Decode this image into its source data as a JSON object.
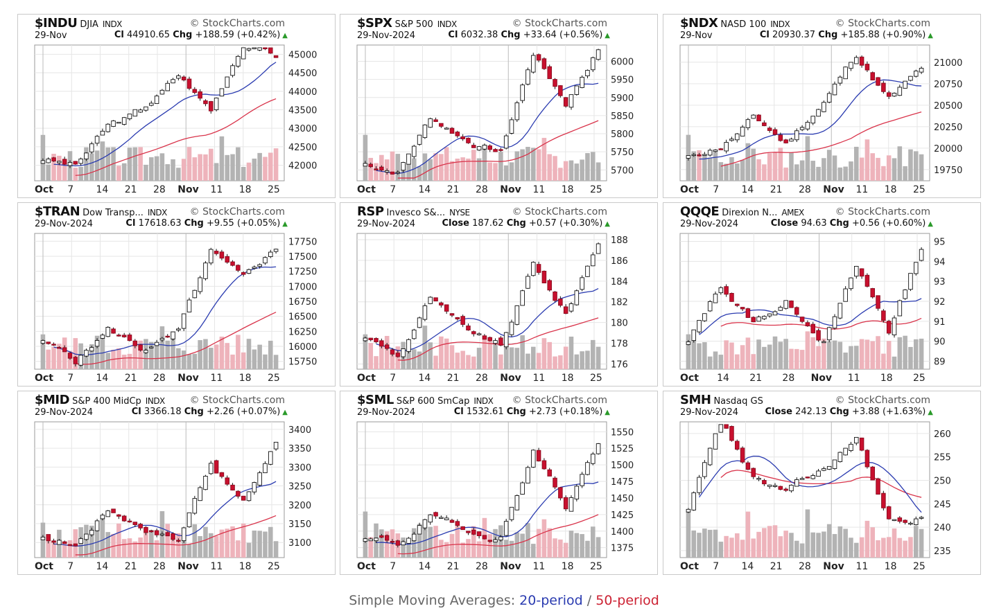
{
  "caption": {
    "prefix": "Simple Moving Averages:",
    "sma20": "20-period",
    "sep": "/",
    "sma50": "50-period"
  },
  "colors": {
    "up_candle": "#ffffff",
    "down_candle": "#c8102e",
    "sma20": "#2a3bb0",
    "sma50": "#d9334a",
    "volume_up": "#b3b3b3",
    "volume_down": "#eeb3bb",
    "grid": "#e6e6e6"
  },
  "chart_data": [
    {
      "type": "candlestick",
      "symbol": "$INDU",
      "name": "DJIA",
      "exchange": "INDX",
      "brand": "StockCharts.com",
      "date": "29-Nov",
      "last_label": "Cl",
      "last": "44910.65",
      "chg": "+188.59 (+0.42%)",
      "y_ticks": [
        42000,
        42500,
        43000,
        43500,
        44000,
        44500,
        45000
      ],
      "ylim": [
        41580,
        45250
      ],
      "x_labels": [
        "Oct",
        "7",
        "14",
        "21",
        "28",
        "Nov",
        "11",
        "18",
        "25"
      ],
      "start": 42200,
      "end": 44910,
      "drift": [
        -150,
        1100,
        400,
        900,
        -900,
        2200,
        -300
      ],
      "seed": 3
    },
    {
      "type": "candlestick",
      "symbol": "$SPX",
      "name": "S&P 500",
      "exchange": "INDX",
      "brand": "StockCharts.com",
      "date": "29-Nov-2024",
      "last_label": "Cl",
      "last": "6032.38",
      "chg": "+33.64 (+0.56%)",
      "y_ticks": [
        5700,
        5750,
        5800,
        5850,
        5900,
        5950,
        6000
      ],
      "ylim": [
        5670,
        6045
      ],
      "x_labels": [
        "Oct",
        "7",
        "14",
        "21",
        "28",
        "Nov",
        "11",
        "18",
        "25"
      ],
      "start": 5720,
      "end": 6032,
      "drift": [
        -20,
        150,
        -60,
        -40,
        280,
        -150,
        160
      ],
      "seed": 7
    },
    {
      "type": "candlestick",
      "symbol": "$NDX",
      "name": "NASD 100",
      "exchange": "INDX",
      "brand": "StockCharts.com",
      "date": "29-Nov",
      "last_label": "Cl",
      "last": "20930.37",
      "chg": "+185.88 (+0.90%)",
      "y_ticks": [
        19750,
        20000,
        20250,
        20500,
        20750,
        21000
      ],
      "ylim": [
        19620,
        21200
      ],
      "x_labels": [
        "Oct",
        "7",
        "14",
        "21",
        "28",
        "Nov",
        "11",
        "18",
        "25"
      ],
      "start": 19850,
      "end": 20930,
      "drift": [
        200,
        350,
        -300,
        500,
        600,
        -500,
        330
      ],
      "seed": 11
    },
    {
      "type": "candlestick",
      "symbol": "$TRAN",
      "name": "Dow Transp...",
      "exchange": "INDX",
      "brand": "StockCharts.com",
      "date": "29-Nov-2024",
      "last_label": "Cl",
      "last": "17618.63",
      "chg": "+9.55 (+0.05%)",
      "y_ticks": [
        15750,
        16000,
        16250,
        16500,
        16750,
        17000,
        17250,
        17500,
        17750
      ],
      "ylim": [
        15620,
        17880
      ],
      "x_labels": [
        "Oct",
        "7",
        "14",
        "21",
        "28",
        "Nov",
        "11",
        "18",
        "25"
      ],
      "start": 16100,
      "end": 17618,
      "drift": [
        -300,
        600,
        -300,
        250,
        1300,
        -600,
        560
      ],
      "seed": 5
    },
    {
      "type": "candlestick",
      "symbol": "RSP",
      "name": "Invesco S&...",
      "exchange": "NYSE",
      "brand": "StockCharts.com",
      "date": "29-Nov-2024",
      "last_label": "Close",
      "last": "187.62",
      "chg": "+0.57 (+0.30%)",
      "y_ticks": [
        176,
        178,
        180,
        182,
        184,
        186,
        188
      ],
      "ylim": [
        175.5,
        188.6
      ],
      "x_labels": [
        "Oct",
        "7",
        "14",
        "21",
        "28",
        "Nov",
        "11",
        "18",
        "25"
      ],
      "start": 179,
      "end": 187.6,
      "drift": [
        -2,
        6,
        -4,
        -2,
        8,
        -5,
        7.6
      ],
      "seed": 9
    },
    {
      "type": "candlestick",
      "symbol": "QQQE",
      "name": "Direxion N...",
      "exchange": "AMEX",
      "brand": "StockCharts.com",
      "date": "29-Nov-2024",
      "last_label": "Close",
      "last": "94.63",
      "chg": "+0.56 (+0.60%)",
      "y_ticks": [
        89,
        90,
        91,
        92,
        93,
        94,
        95
      ],
      "ylim": [
        88.6,
        95.4
      ],
      "x_labels": [
        "Oct",
        "14",
        "21",
        "28",
        "Nov",
        "11",
        "18",
        "25"
      ],
      "start": 89.5,
      "end": 94.6,
      "drift": [
        2.8,
        -2,
        1,
        -1.5,
        3.5,
        -3.5,
        4.3
      ],
      "seed": 13
    },
    {
      "type": "candlestick",
      "symbol": "$MID",
      "name": "S&P 400 MidCp",
      "exchange": "INDX",
      "brand": "StockCharts.com",
      "date": "29-Nov-2024",
      "last_label": "Cl",
      "last": "3366.18",
      "chg": "+2.26 (+0.07%)",
      "y_ticks": [
        3100,
        3150,
        3200,
        3250,
        3300,
        3350,
        3400
      ],
      "ylim": [
        3060,
        3420
      ],
      "x_labels": [
        "Oct",
        "7",
        "14",
        "21",
        "28",
        "Nov",
        "11",
        "18",
        "25"
      ],
      "start": 3110,
      "end": 3366,
      "drift": [
        -20,
        100,
        -40,
        -30,
        220,
        -120,
        160
      ],
      "seed": 17
    },
    {
      "type": "candlestick",
      "symbol": "$SML",
      "name": "S&P 600 SmCap",
      "exchange": "INDX",
      "brand": "StockCharts.com",
      "date": "29-Nov-2024",
      "last_label": "Cl",
      "last": "1532.61",
      "chg": "+2.73 (+0.18%)",
      "y_ticks": [
        1375,
        1400,
        1425,
        1450,
        1475,
        1500,
        1525,
        1550
      ],
      "ylim": [
        1360,
        1565
      ],
      "x_labels": [
        "Oct",
        "7",
        "14",
        "21",
        "28",
        "Nov",
        "11",
        "18",
        "25"
      ],
      "start": 1390,
      "end": 1532,
      "drift": [
        -15,
        50,
        -40,
        0,
        140,
        -90,
        100
      ],
      "seed": 19
    },
    {
      "type": "candlestick",
      "symbol": "SMH",
      "name": "Nasdaq GS",
      "exchange": "",
      "brand": "StockCharts.com",
      "date": "29-Nov-2024",
      "last_label": "Close",
      "last": "242.13",
      "chg": "+3.88 (+1.63%)",
      "y_ticks": [
        235,
        240,
        245,
        250,
        255,
        260
      ],
      "ylim": [
        233.5,
        262.5
      ],
      "x_labels": [
        "Oct",
        "7",
        "14",
        "21",
        "28",
        "Nov",
        "11",
        "18",
        "25"
      ],
      "start": 240,
      "end": 242.1,
      "drift": [
        20,
        -12,
        -3,
        4,
        8,
        -18,
        3
      ],
      "seed": 23
    }
  ]
}
